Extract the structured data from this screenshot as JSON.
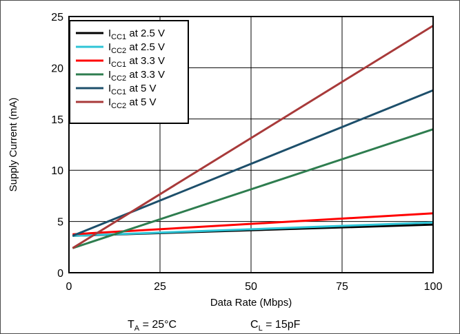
{
  "chart_data": {
    "type": "line",
    "xlabel": "Data Rate (Mbps)",
    "ylabel": "Supply Current (mA)",
    "xlim": [
      0,
      100
    ],
    "ylim": [
      0,
      25
    ],
    "x_ticks": [
      "0",
      "25",
      "50",
      "75",
      "100"
    ],
    "y_ticks": [
      "0",
      "5",
      "10",
      "15",
      "20",
      "25"
    ],
    "grid": true,
    "legend_position": "top-left",
    "series": [
      {
        "name_main": "I",
        "name_sub": "CC1",
        "name_rest": " at 2.5 V",
        "color": "#000000",
        "x": [
          1,
          100
        ],
        "y": [
          3.6,
          4.7
        ]
      },
      {
        "name_main": "I",
        "name_sub": "CC2",
        "name_rest": " at 2.5 V",
        "color": "#2ec4d6",
        "x": [
          1,
          100
        ],
        "y": [
          3.6,
          4.9
        ]
      },
      {
        "name_main": "I",
        "name_sub": "CC1",
        "name_rest": " at 3.3 V",
        "color": "#ff0000",
        "x": [
          1,
          100
        ],
        "y": [
          3.75,
          5.8
        ]
      },
      {
        "name_main": "I",
        "name_sub": "CC2",
        "name_rest": " at 3.3 V",
        "color": "#2e7d4f",
        "x": [
          1,
          100
        ],
        "y": [
          2.4,
          14.0
        ]
      },
      {
        "name_main": "I",
        "name_sub": "CC1",
        "name_rest": " at 5 V",
        "color": "#1d4f6b",
        "x": [
          1,
          100
        ],
        "y": [
          3.6,
          17.8
        ]
      },
      {
        "name_main": "I",
        "name_sub": "CC2",
        "name_rest": " at 5 V",
        "color": "#a83a3a",
        "x": [
          1,
          100
        ],
        "y": [
          2.4,
          24.1
        ]
      }
    ]
  },
  "conditions": {
    "ta_main": "T",
    "ta_sub": "A",
    "ta_rest": " = 25°C",
    "cl_main": "C",
    "cl_sub": "L",
    "cl_rest": " = 15pF"
  }
}
